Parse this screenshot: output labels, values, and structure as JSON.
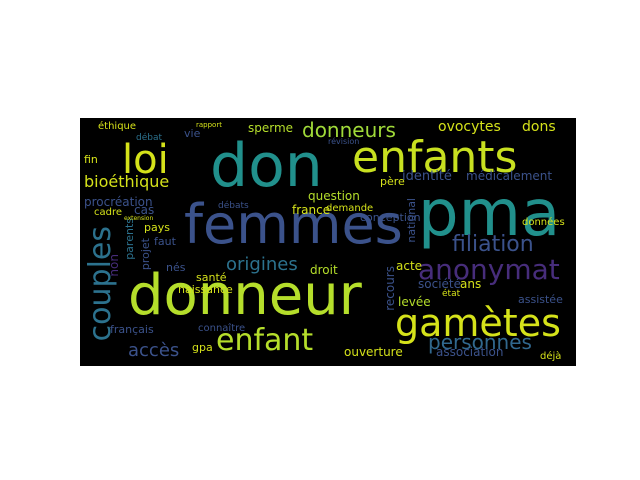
{
  "palette": {
    "yellow": "#d5e21a",
    "lime": "#8fd744",
    "green": "#3fbc73",
    "teal": "#21908c",
    "blue": "#2c728e",
    "indigo": "#3b528b",
    "purple": "#472d7b",
    "violet": "#440154",
    "background": "#000000"
  },
  "words": [
    {
      "text": "don",
      "color": "#21908c"
    },
    {
      "text": "enfants",
      "color": "#c8e020"
    },
    {
      "text": "pma",
      "color": "#21908c"
    },
    {
      "text": "femmes",
      "color": "#3b528b"
    },
    {
      "text": "donneur",
      "color": "#b5de2b"
    },
    {
      "text": "loi",
      "color": "#d5e21a"
    },
    {
      "text": "gamètes",
      "color": "#d5e21a"
    },
    {
      "text": "anonymat",
      "color": "#472d7b"
    },
    {
      "text": "couples",
      "color": "#2c728e"
    },
    {
      "text": "enfant",
      "color": "#b5de2b"
    },
    {
      "text": "donneurs",
      "color": "#a0da39"
    },
    {
      "text": "personnes",
      "color": "#31688e"
    },
    {
      "text": "filiation",
      "color": "#3b528b"
    },
    {
      "text": "origines",
      "color": "#2c728e"
    },
    {
      "text": "bioéthique",
      "color": "#d5e21a"
    },
    {
      "text": "accès",
      "color": "#3b528b"
    },
    {
      "text": "ovocytes",
      "color": "#d5e21a"
    },
    {
      "text": "dons",
      "color": "#d5e21a"
    },
    {
      "text": "sperme",
      "color": "#b5de2b"
    },
    {
      "text": "identité",
      "color": "#3b528b"
    },
    {
      "text": "médicalement",
      "color": "#3b528b"
    },
    {
      "text": "procréation",
      "color": "#3b528b"
    },
    {
      "text": "question",
      "color": "#b5de2b"
    },
    {
      "text": "france",
      "color": "#d5e21a"
    },
    {
      "text": "demande",
      "color": "#d5e21a"
    },
    {
      "text": "conception",
      "color": "#3b528b"
    },
    {
      "text": "droit",
      "color": "#b5de2b"
    },
    {
      "text": "acte",
      "color": "#d5e21a"
    },
    {
      "text": "ans",
      "color": "#d5e21a"
    },
    {
      "text": "levée",
      "color": "#b5de2b"
    },
    {
      "text": "société",
      "color": "#3b528b"
    },
    {
      "text": "assistée",
      "color": "#3b528b"
    },
    {
      "text": "ouverture",
      "color": "#d5e21a"
    },
    {
      "text": "association",
      "color": "#3b528b"
    },
    {
      "text": "déjà",
      "color": "#d5e21a"
    },
    {
      "text": "recours",
      "color": "#3b528b"
    },
    {
      "text": "éthique",
      "color": "#d5e21a"
    },
    {
      "text": "fin",
      "color": "#d5e21a"
    },
    {
      "text": "vie",
      "color": "#3b528b"
    },
    {
      "text": "cas",
      "color": "#3b528b"
    },
    {
      "text": "pays",
      "color": "#d5e21a"
    },
    {
      "text": "faut",
      "color": "#3b528b"
    },
    {
      "text": "parents",
      "color": "#2c728e"
    },
    {
      "text": "nés",
      "color": "#3b528b"
    },
    {
      "text": "santé",
      "color": "#d5e21a"
    },
    {
      "text": "naissance",
      "color": "#d5e21a"
    },
    {
      "text": "connaître",
      "color": "#3b528b"
    },
    {
      "text": "gpa",
      "color": "#d5e21a"
    },
    {
      "text": "français",
      "color": "#3b528b"
    },
    {
      "text": "non",
      "color": "#472d7b"
    },
    {
      "text": "projet",
      "color": "#3b528b"
    },
    {
      "text": "cadre",
      "color": "#d5e21a"
    },
    {
      "text": "débats",
      "color": "#3b528b"
    },
    {
      "text": "débat",
      "color": "#2c728e"
    },
    {
      "text": "père",
      "color": "#d5e21a"
    },
    {
      "text": "national",
      "color": "#3b528b"
    },
    {
      "text": "données",
      "color": "#d5e21a"
    },
    {
      "text": "état",
      "color": "#d5e21a"
    },
    {
      "text": "rapport",
      "color": "#d5e21a"
    },
    {
      "text": "révision",
      "color": "#3b528b"
    },
    {
      "text": "extension",
      "color": "#d5e21a"
    }
  ]
}
